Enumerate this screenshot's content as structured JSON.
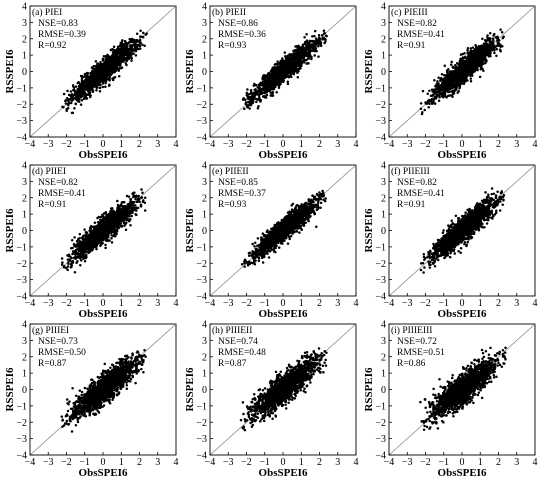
{
  "chart_data": [
    {
      "type": "scatter",
      "panel_label": "(a) PIEI",
      "stats": [
        "NSE=0.83",
        "RMSE=0.39",
        "R=0.92"
      ],
      "xlabel": "ObsSPEI6",
      "ylabel": "RSSPEI6",
      "xlim": [
        -4,
        4
      ],
      "ylim": [
        -4,
        4
      ],
      "ticks": [
        "−4",
        "−3",
        "−2",
        "−1",
        "0",
        "1",
        "2",
        "3",
        "4"
      ],
      "reference_line": "1:1",
      "correlation": 0.92,
      "n_points": 1500
    },
    {
      "type": "scatter",
      "panel_label": "(b) PIEII",
      "stats": [
        "NSE=0.86",
        "RMSE=0.36",
        "R=0.93"
      ],
      "xlabel": "ObsSPEI6",
      "ylabel": "RSSPEI6",
      "xlim": [
        -4,
        4
      ],
      "ylim": [
        -4,
        4
      ],
      "ticks": [
        "−4",
        "−3",
        "−2",
        "−1",
        "0",
        "1",
        "2",
        "3",
        "4"
      ],
      "reference_line": "1:1",
      "correlation": 0.93,
      "n_points": 1500
    },
    {
      "type": "scatter",
      "panel_label": "(c) PIEIII",
      "stats": [
        "NSE=0.82",
        "RMSE=0.41",
        "R=0.91"
      ],
      "xlabel": "ObsSPEI6",
      "ylabel": "RSSPEI6",
      "xlim": [
        -4,
        4
      ],
      "ylim": [
        -4,
        4
      ],
      "ticks": [
        "−4",
        "−3",
        "−2",
        "−1",
        "0",
        "1",
        "2",
        "3",
        "4"
      ],
      "reference_line": "1:1",
      "correlation": 0.91,
      "n_points": 1500
    },
    {
      "type": "scatter",
      "panel_label": "(d) PIIEI",
      "stats": [
        "NSE=0.82",
        "RMSE=0.41",
        "R=0.91"
      ],
      "xlabel": "ObsSPEI6",
      "ylabel": "RSSPEI6",
      "xlim": [
        -4,
        4
      ],
      "ylim": [
        -4,
        4
      ],
      "ticks": [
        "−4",
        "−3",
        "−2",
        "−1",
        "0",
        "1",
        "2",
        "3",
        "4"
      ],
      "reference_line": "1:1",
      "correlation": 0.91,
      "n_points": 1500
    },
    {
      "type": "scatter",
      "panel_label": "(e) PIIEII",
      "stats": [
        "NSE=0.85",
        "RMSE=0.37",
        "R=0.93"
      ],
      "xlabel": "ObsSPEI6",
      "ylabel": "RSSPEI6",
      "xlim": [
        -4,
        4
      ],
      "ylim": [
        -4,
        4
      ],
      "ticks": [
        "−4",
        "−3",
        "−2",
        "−1",
        "0",
        "1",
        "2",
        "3",
        "4"
      ],
      "reference_line": "1:1",
      "correlation": 0.93,
      "n_points": 1500
    },
    {
      "type": "scatter",
      "panel_label": "(f) PIIEIII",
      "stats": [
        "NSE=0.82",
        "RMSE=0.41",
        "R=0.91"
      ],
      "xlabel": "ObsSPEI6",
      "ylabel": "RSSPEI6",
      "xlim": [
        -4,
        4
      ],
      "ylim": [
        -4,
        4
      ],
      "ticks": [
        "−4",
        "−3",
        "−2",
        "−1",
        "0",
        "1",
        "2",
        "3",
        "4"
      ],
      "reference_line": "1:1",
      "correlation": 0.91,
      "n_points": 1500
    },
    {
      "type": "scatter",
      "panel_label": "(g) PIIIEI",
      "stats": [
        "NSE=0.73",
        "RMSE=0.50",
        "R=0.87"
      ],
      "xlabel": "ObsSPEI6",
      "ylabel": "RSSPEI6",
      "xlim": [
        -4,
        4
      ],
      "ylim": [
        -4,
        4
      ],
      "ticks": [
        "−4",
        "−3",
        "−2",
        "−1",
        "0",
        "1",
        "2",
        "3",
        "4"
      ],
      "reference_line": "1:1",
      "correlation": 0.87,
      "n_points": 1500
    },
    {
      "type": "scatter",
      "panel_label": "(h) PIIIEII",
      "stats": [
        "NSE=0.74",
        "RMSE=0.48",
        "R=0.87"
      ],
      "xlabel": "ObsSPEI6",
      "ylabel": "RSSPEI6",
      "xlim": [
        -4,
        4
      ],
      "ylim": [
        -4,
        4
      ],
      "ticks": [
        "−4",
        "−3",
        "−2",
        "−1",
        "0",
        "1",
        "2",
        "3",
        "4"
      ],
      "reference_line": "1:1",
      "correlation": 0.87,
      "n_points": 1500
    },
    {
      "type": "scatter",
      "panel_label": "(i) PIIIEIII",
      "stats": [
        "NSE=0.72",
        "RMSE=0.51",
        "R=0.86"
      ],
      "xlabel": "ObsSPEI6",
      "ylabel": "RSSPEI6",
      "xlim": [
        -4,
        4
      ],
      "ylim": [
        -4,
        4
      ],
      "ticks": [
        "−4",
        "−3",
        "−2",
        "−1",
        "0",
        "1",
        "2",
        "3",
        "4"
      ],
      "reference_line": "1:1",
      "correlation": 0.86,
      "n_points": 1500
    }
  ]
}
